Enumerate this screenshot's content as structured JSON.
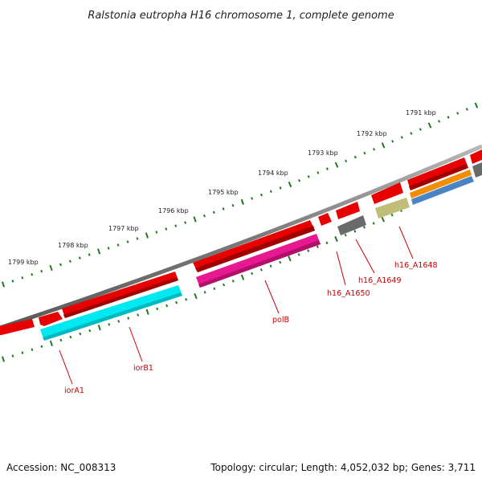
{
  "title": "Ralstonia eutropha H16 chromosome 1, complete genome",
  "footer": {
    "accession": "Accession: NC_008313",
    "summary": "Topology: circular; Length: 4,052,032 bp; Genes: 3,711"
  },
  "colors": {
    "backbone": "#7f7f7f",
    "ticks": "#1e7a1e",
    "label": "#cc0000",
    "red": "#e80000",
    "cyan": "#00e8f0",
    "magenta": "#e81890",
    "gray": "#6a6a6a",
    "olive": "#c0bd78",
    "orange": "#f28c00",
    "blue": "#4a84c4"
  },
  "scale": {
    "ticks": [
      {
        "label": "1799 kbp"
      },
      {
        "label": "1798 kbp"
      },
      {
        "label": "1797 kbp"
      },
      {
        "label": "1796 kbp"
      },
      {
        "label": "1795 kbp"
      },
      {
        "label": "1794 kbp"
      },
      {
        "label": "1793 kbp"
      },
      {
        "label": "1792 kbp"
      },
      {
        "label": "1791 kbp"
      }
    ]
  },
  "genes": [
    {
      "name": "iorA1",
      "color": "cyan"
    },
    {
      "name": "iorB1",
      "color": "cyan"
    },
    {
      "name": "polB",
      "color": "magenta"
    },
    {
      "name": "h16_A1650",
      "color": "red"
    },
    {
      "name": "h16_A1649",
      "color": "gray"
    },
    {
      "name": "h16_A1648",
      "color": "olive"
    }
  ]
}
